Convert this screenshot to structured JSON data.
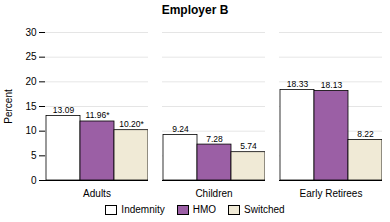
{
  "chart_data": {
    "type": "bar",
    "title": "Employer B",
    "ylabel": "Percent",
    "categories": [
      "Adults",
      "Children",
      "Early Retirees"
    ],
    "series": [
      {
        "name": "Indemnity",
        "color": "#ffffff",
        "values": [
          13.09,
          9.24,
          18.33
        ],
        "value_labels": [
          "13.09",
          "9.24",
          "18.33"
        ]
      },
      {
        "name": "HMO",
        "color": "#9b5fa5",
        "values": [
          11.96,
          7.28,
          18.13
        ],
        "value_labels": [
          "11.96*",
          "7.28",
          "18.13"
        ]
      },
      {
        "name": "Switched",
        "color": "#f0ead6",
        "values": [
          10.2,
          5.74,
          8.22
        ],
        "value_labels": [
          "10.20*",
          "5.74",
          "8.22"
        ]
      }
    ],
    "ylim": [
      0,
      30
    ],
    "yticks": [
      0,
      5,
      10,
      15,
      20,
      25,
      30
    ],
    "grid": true,
    "legend": "bottom",
    "data_labels": true
  }
}
